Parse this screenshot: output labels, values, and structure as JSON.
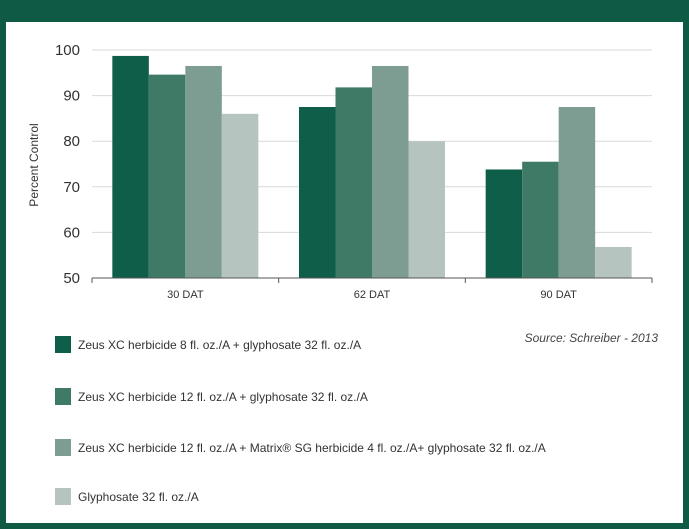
{
  "chart_data": {
    "type": "bar",
    "ylabel": "Percent Control",
    "ylim": [
      50,
      100
    ],
    "yticks": [
      50,
      60,
      70,
      80,
      90,
      100
    ],
    "grid": "horizontal",
    "legend_position": "bottom",
    "categories": [
      "30 DAT",
      "62 DAT",
      "90 DAT"
    ],
    "series": [
      {
        "name": "Zeus XC herbicide 8 fl. oz./A + glyphosate 32 fl. oz./A",
        "color": "#0f5e4a",
        "values": [
          98.7,
          87.5,
          73.8
        ]
      },
      {
        "name": "Zeus XC herbicide 12 fl. oz./A + glyphosate 32 fl. oz./A",
        "color": "#3f7a67",
        "values": [
          94.6,
          91.8,
          75.5
        ]
      },
      {
        "name": "Zeus XC herbicide 12 fl. oz./A + Matrix® SG herbicide 4 fl. oz./A+ glyphosate 32 fl. oz./A",
        "color": "#7d9d92",
        "values": [
          96.5,
          96.5,
          87.5
        ]
      },
      {
        "name": "Glyphosate 32 fl. oz./A",
        "color": "#b6c4bf",
        "values": [
          86.0,
          80.0,
          56.8
        ]
      }
    ],
    "source": "Source: Schreiber - 2013"
  }
}
